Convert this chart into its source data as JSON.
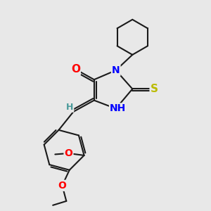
{
  "bg_color": "#e8e8e8",
  "bond_color": "#1a1a1a",
  "bond_width": 1.5,
  "atom_colors": {
    "O": "#ff0000",
    "N": "#0000ff",
    "S": "#bbbb00",
    "H": "#4a9a9a",
    "C": "#1a1a1a"
  },
  "font_size": 9,
  "fig_bg": "#e8e8e8"
}
